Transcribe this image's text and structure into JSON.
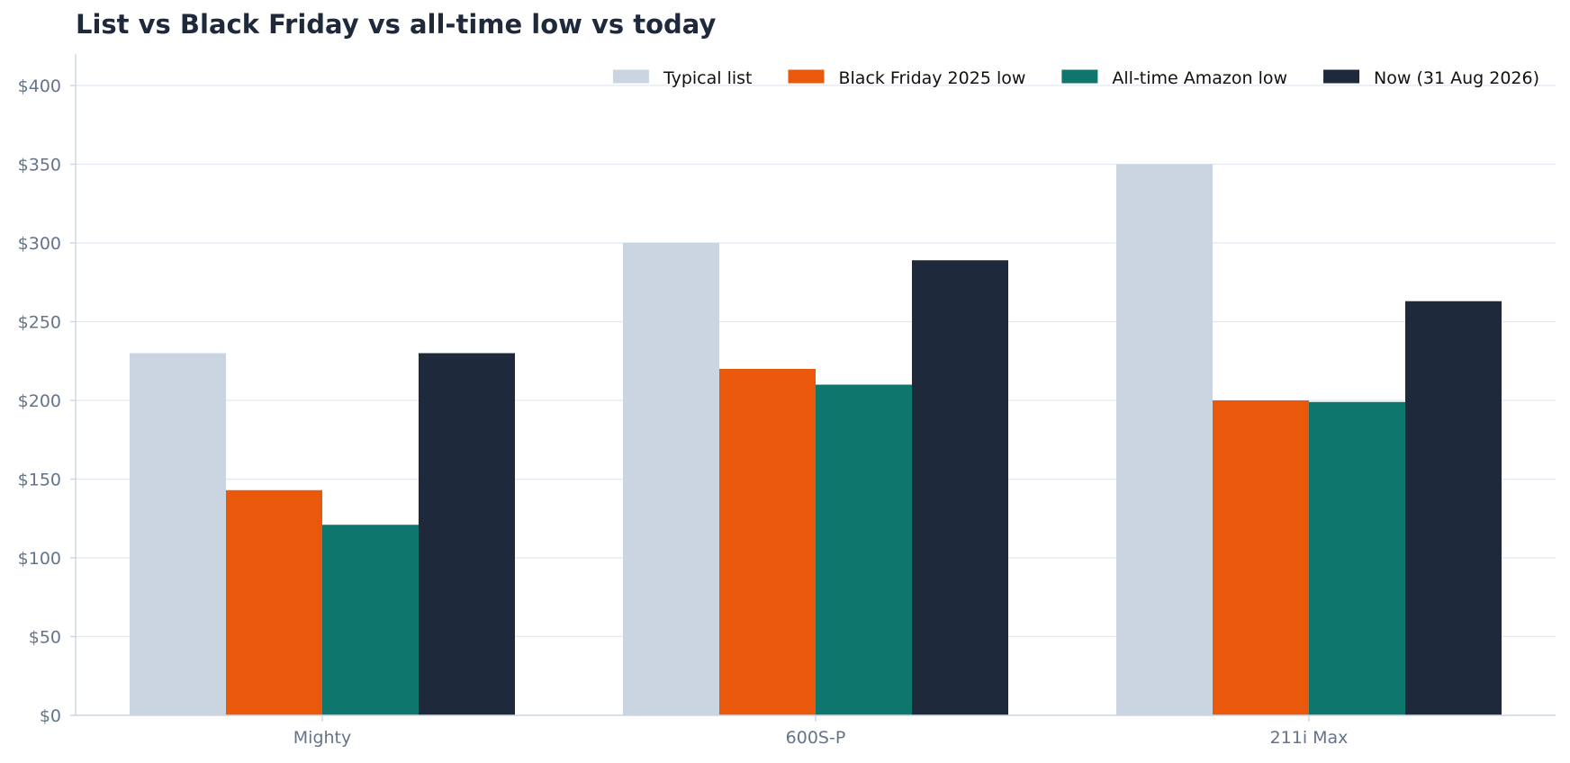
{
  "chart_data": {
    "type": "bar",
    "title": "List vs Black Friday vs all-time low vs today",
    "xlabel": "",
    "ylabel": "",
    "categories": [
      "Mighty",
      "600S-P",
      "211i Max"
    ],
    "ylim": [
      0,
      420
    ],
    "yticks": [
      0,
      50,
      100,
      150,
      200,
      250,
      300,
      350,
      400
    ],
    "ytick_labels": [
      "$0",
      "$50",
      "$100",
      "$150",
      "$200",
      "$250",
      "$300",
      "$350",
      "$400"
    ],
    "grid": true,
    "legend_position": "top-right",
    "series": [
      {
        "name": "Typical list",
        "color": "#cbd5e1",
        "values": [
          230,
          300,
          350
        ]
      },
      {
        "name": "Black Friday 2025 low",
        "color": "#ea580c",
        "values": [
          143,
          220,
          200
        ]
      },
      {
        "name": "All-time Amazon low",
        "color": "#0f766e",
        "values": [
          121,
          210,
          199
        ]
      },
      {
        "name": "Now (31 Aug 2026)",
        "color": "#1e293b",
        "values": [
          230,
          289,
          263
        ]
      }
    ]
  }
}
